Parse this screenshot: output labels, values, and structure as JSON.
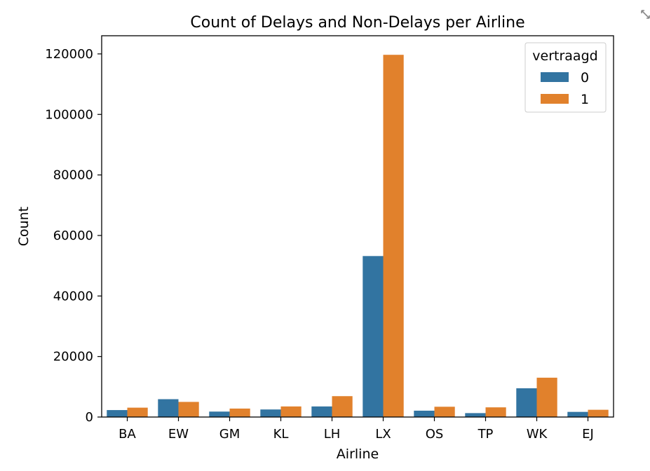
{
  "chart_data": {
    "type": "bar",
    "title": "Count of Delays and Non-Delays per Airline",
    "xlabel": "Airline",
    "ylabel": "Count",
    "categories": [
      "BA",
      "EW",
      "GM",
      "KL",
      "LH",
      "LX",
      "OS",
      "TP",
      "WK",
      "EJ"
    ],
    "series": [
      {
        "name": "0",
        "color": "#3274a1",
        "values": [
          2300,
          5900,
          1800,
          2500,
          3500,
          53200,
          2100,
          1300,
          9500,
          1700
        ]
      },
      {
        "name": "1",
        "color": "#e1812c",
        "values": [
          3100,
          5000,
          2800,
          3500,
          6900,
          119700,
          3400,
          3200,
          13000,
          2400
        ]
      }
    ],
    "ylim": [
      0,
      126000
    ],
    "yticks": [
      0,
      20000,
      40000,
      60000,
      80000,
      100000,
      120000
    ],
    "legend": {
      "title": "vertraagd",
      "placement": "top-right"
    },
    "grid": false
  },
  "toolbar": {
    "icon": "expand-icon"
  }
}
